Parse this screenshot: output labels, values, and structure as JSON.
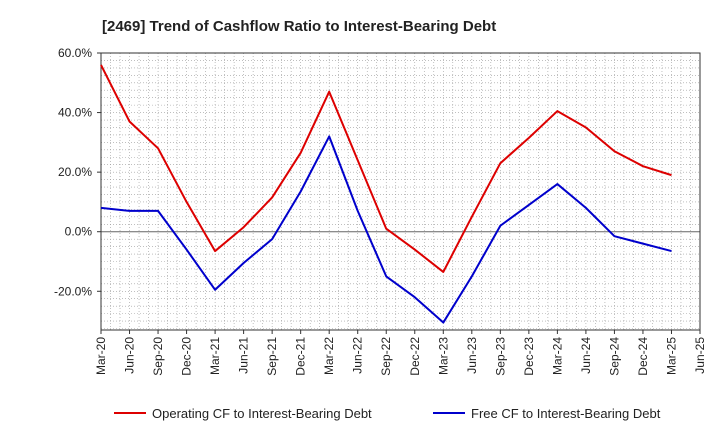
{
  "chart_data": {
    "type": "line",
    "title": "[2469]  Trend of Cashflow Ratio to Interest-Bearing Debt",
    "xlabel": "",
    "ylabel": "",
    "ylim": [
      -33,
      60
    ],
    "yticks": [
      60,
      40,
      20,
      0,
      -20
    ],
    "ytick_labels": [
      "60.0%",
      "40.0%",
      "20.0%",
      "0.0%",
      "-20.0%"
    ],
    "categories": [
      "Mar-20",
      "Jun-20",
      "Sep-20",
      "Dec-20",
      "Mar-21",
      "Jun-21",
      "Sep-21",
      "Dec-21",
      "Mar-22",
      "Jun-22",
      "Sep-22",
      "Dec-22",
      "Mar-23",
      "Jun-23",
      "Sep-23",
      "Dec-23",
      "Mar-24",
      "Jun-24",
      "Sep-24",
      "Dec-24",
      "Mar-25",
      "Jun-25"
    ],
    "grid": true,
    "legend_position": "bottom",
    "series": [
      {
        "name": "Operating CF to Interest-Bearing Debt",
        "color": "#dd0000",
        "values": [
          56.0,
          37.0,
          28.0,
          10.0,
          -6.5,
          1.5,
          11.5,
          26.5,
          47.0,
          24.0,
          1.0,
          -6.0,
          -13.5,
          5.0,
          23.0,
          31.5,
          40.5,
          35.0,
          27.0,
          22.0,
          19.0,
          null
        ]
      },
      {
        "name": "Free CF to Interest-Bearing Debt",
        "color": "#0000cc",
        "values": [
          8.0,
          7.0,
          7.0,
          -6.0,
          -19.5,
          -10.5,
          -2.5,
          13.5,
          32.0,
          7.0,
          -15.0,
          -22.0,
          -30.5,
          -15.0,
          2.0,
          9.0,
          16.0,
          8.0,
          -1.5,
          -4.0,
          -6.5,
          null
        ]
      }
    ]
  }
}
